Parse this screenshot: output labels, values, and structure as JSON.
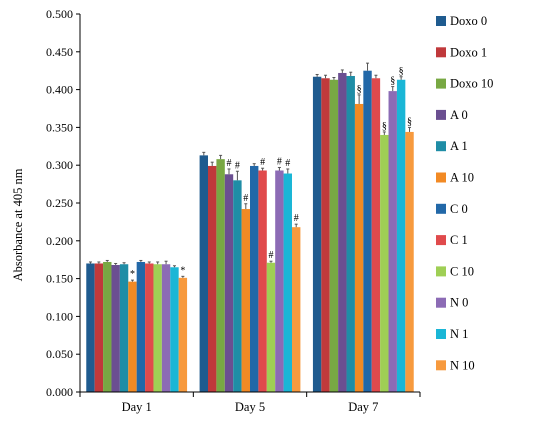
{
  "chart_data": {
    "type": "bar",
    "title": "",
    "xlabel": "",
    "ylabel": "Absorbance at 405 nm",
    "ylim": [
      0,
      0.5
    ],
    "yticks": [
      "0.000",
      "0.050",
      "0.100",
      "0.150",
      "0.200",
      "0.250",
      "0.300",
      "0.350",
      "0.400",
      "0.450",
      "0.500"
    ],
    "grid": false,
    "legend_position": "right",
    "error_bars": true,
    "categories": [
      "Day 1",
      "Day 5",
      "Day 7"
    ],
    "series": [
      {
        "name": "Doxo 0",
        "color": "#1f5b8f",
        "values": [
          0.17,
          0.313,
          0.417
        ],
        "errors": [
          0.002,
          0.004,
          0.003
        ],
        "annotations": [
          "",
          "",
          ""
        ]
      },
      {
        "name": "Doxo 1",
        "color": "#c0393b",
        "values": [
          0.17,
          0.299,
          0.415
        ],
        "errors": [
          0.002,
          0.005,
          0.004
        ],
        "annotations": [
          "",
          "",
          ""
        ]
      },
      {
        "name": "Doxo 10",
        "color": "#78a843",
        "values": [
          0.172,
          0.308,
          0.413
        ],
        "errors": [
          0.002,
          0.005,
          0.003
        ],
        "annotations": [
          "",
          "",
          ""
        ]
      },
      {
        "name": "A 0",
        "color": "#6b4f91",
        "values": [
          0.168,
          0.288,
          0.422
        ],
        "errors": [
          0.002,
          0.007,
          0.004
        ],
        "annotations": [
          "",
          "#",
          ""
        ]
      },
      {
        "name": "A 1",
        "color": "#1f8da6",
        "values": [
          0.169,
          0.28,
          0.418
        ],
        "errors": [
          0.002,
          0.012,
          0.005
        ],
        "annotations": [
          "",
          "#",
          ""
        ]
      },
      {
        "name": "A 10",
        "color": "#f28a24",
        "values": [
          0.146,
          0.242,
          0.381
        ],
        "errors": [
          0.002,
          0.007,
          0.012
        ],
        "annotations": [
          "*",
          "#",
          "§"
        ]
      },
      {
        "name": "C 0",
        "color": "#2268a8",
        "values": [
          0.172,
          0.299,
          0.425
        ],
        "errors": [
          0.002,
          0.003,
          0.01
        ],
        "annotations": [
          "",
          "",
          ""
        ]
      },
      {
        "name": "C 1",
        "color": "#e04a4c",
        "values": [
          0.17,
          0.293,
          0.415
        ],
        "errors": [
          0.002,
          0.003,
          0.004
        ],
        "annotations": [
          "",
          "#",
          ""
        ]
      },
      {
        "name": "C 10",
        "color": "#9fcf55",
        "values": [
          0.169,
          0.171,
          0.34
        ],
        "errors": [
          0.003,
          0.002,
          0.004
        ],
        "annotations": [
          "",
          "#",
          "§"
        ]
      },
      {
        "name": "N 0",
        "color": "#8c6bb5",
        "values": [
          0.169,
          0.293,
          0.398
        ],
        "errors": [
          0.004,
          0.004,
          0.006
        ],
        "annotations": [
          "",
          "#",
          "§"
        ]
      },
      {
        "name": "N 1",
        "color": "#1ab6d6",
        "values": [
          0.165,
          0.289,
          0.413
        ],
        "errors": [
          0.002,
          0.006,
          0.004
        ],
        "annotations": [
          "",
          "#",
          "§"
        ]
      },
      {
        "name": "N 10",
        "color": "#f79a3e",
        "values": [
          0.151,
          0.218,
          0.344
        ],
        "errors": [
          0.002,
          0.004,
          0.006
        ],
        "annotations": [
          "*",
          "#",
          "§"
        ]
      }
    ]
  }
}
